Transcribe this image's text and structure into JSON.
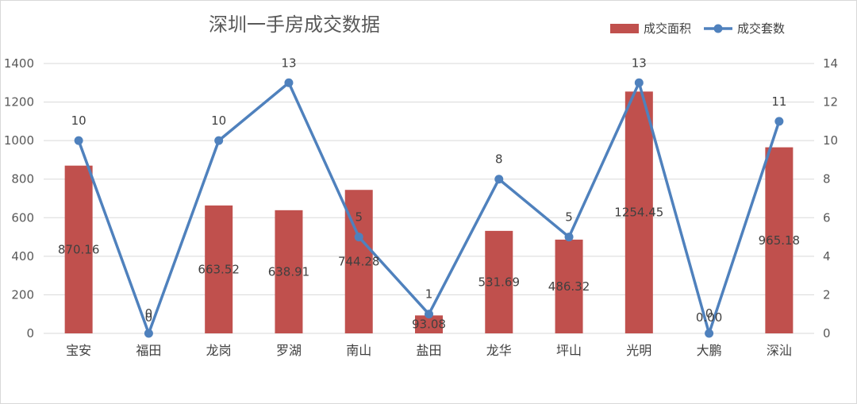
{
  "chart_data": {
    "type": "bar",
    "title": "深圳一手房成交数据",
    "categories": [
      "宝安",
      "福田",
      "龙岗",
      "罗湖",
      "南山",
      "盐田",
      "龙华",
      "坪山",
      "光明",
      "大鹏",
      "深汕"
    ],
    "series": [
      {
        "name": "成交面积",
        "type": "bar",
        "axis": "left",
        "color": "#C0504D",
        "values": [
          870.16,
          0,
          663.52,
          638.91,
          744.28,
          93.08,
          531.69,
          486.32,
          1254.45,
          0,
          965.18
        ],
        "labels": [
          "870.16",
          "0",
          "663.52",
          "638.91",
          "744.28",
          "93.08",
          "531.69",
          "486.32",
          "1254.45",
          "0.00",
          "965.18"
        ]
      },
      {
        "name": "成交套数",
        "type": "line",
        "axis": "right",
        "color": "#4F81BD",
        "values": [
          10,
          0,
          10,
          13,
          5,
          1,
          8,
          5,
          13,
          0,
          11
        ],
        "labels": [
          "10",
          "0",
          "10",
          "13",
          "5",
          "1",
          "8",
          "5",
          "13",
          "0",
          "11"
        ]
      }
    ],
    "y_left": {
      "lim": [
        0,
        1400
      ],
      "ticks": [
        "0",
        "200",
        "400",
        "600",
        "800",
        "1000",
        "1200",
        "1400"
      ]
    },
    "y_right": {
      "lim": [
        0,
        14
      ],
      "ticks": [
        "0",
        "2",
        "4",
        "6",
        "8",
        "10",
        "12",
        "14"
      ]
    },
    "grid": true,
    "legend": "top-right"
  }
}
